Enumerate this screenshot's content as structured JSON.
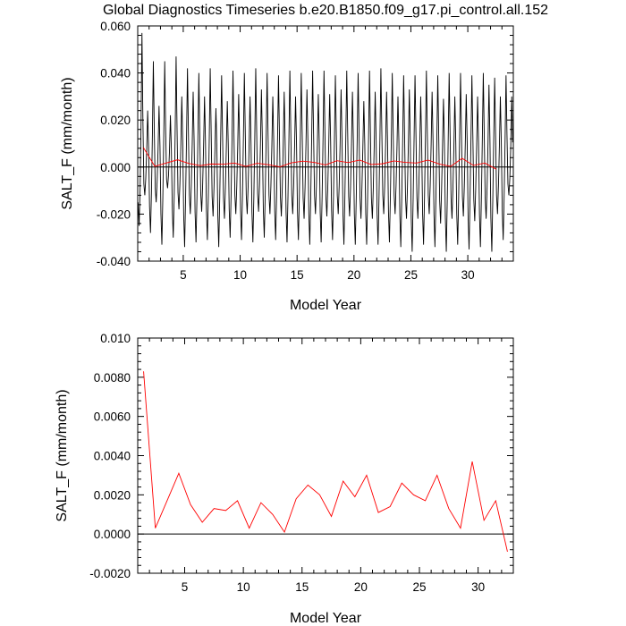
{
  "page_title": "Global Diagnostics Timeseries b.e20.B1850.f09_g17.pi_control.all.152",
  "chart_data": [
    {
      "type": "line",
      "xlabel": "Model Year",
      "ylabel": "SALT_F (mm/month)",
      "xlim": [
        1,
        34
      ],
      "ylim": [
        -0.04,
        0.06
      ],
      "xticks": [
        5,
        10,
        15,
        20,
        25,
        30
      ],
      "xtick_labels": [
        "5",
        "10",
        "15",
        "20",
        "25",
        "30"
      ],
      "yticks": [
        -0.04,
        -0.02,
        0.0,
        0.02,
        0.04,
        0.06
      ],
      "ytick_labels": [
        "-0.040",
        "-0.020",
        "0.000",
        "0.020",
        "0.040",
        "0.060"
      ],
      "zero_line": 0,
      "series": [
        {
          "color": "#000000",
          "kind": "monthly",
          "x_start": 1.04,
          "x_step": 0.0833,
          "peaks": [
            0.057,
            0.024,
            0.045,
            0.026,
            0.045,
            0.022,
            0.047,
            0.03,
            0.042,
            0.032,
            0.04,
            0.03,
            0.042,
            0.025,
            0.039,
            0.028,
            0.041,
            0.031,
            0.04,
            0.03,
            0.042,
            0.033,
            0.04,
            0.03,
            0.039,
            0.032,
            0.041,
            0.03,
            0.04,
            0.033,
            0.041,
            0.031,
            0.041,
            0.031,
            0.039,
            0.033,
            0.041,
            0.032,
            0.04,
            0.028,
            0.041,
            0.032,
            0.042,
            0.032,
            0.04,
            0.03,
            0.039,
            0.033,
            0.039,
            0.03,
            0.041,
            0.032,
            0.039,
            0.029,
            0.04,
            0.03,
            0.04,
            0.031,
            0.039,
            0.03,
            0.04,
            0.035,
            0.038,
            0.03,
            0.039,
            0.03
          ],
          "troughs": [
            -0.025,
            -0.012,
            -0.028,
            -0.015,
            -0.033,
            -0.009,
            -0.03,
            -0.018,
            -0.034,
            -0.02,
            -0.032,
            -0.019,
            -0.031,
            -0.021,
            -0.034,
            -0.022,
            -0.03,
            -0.02,
            -0.031,
            -0.02,
            -0.032,
            -0.019,
            -0.03,
            -0.02,
            -0.031,
            -0.021,
            -0.032,
            -0.02,
            -0.031,
            -0.022,
            -0.033,
            -0.02,
            -0.032,
            -0.021,
            -0.031,
            -0.02,
            -0.033,
            -0.021,
            -0.033,
            -0.022,
            -0.033,
            -0.022,
            -0.033,
            -0.02,
            -0.032,
            -0.02,
            -0.034,
            -0.022,
            -0.036,
            -0.022,
            -0.033,
            -0.02,
            -0.034,
            -0.024,
            -0.036,
            -0.022,
            -0.033,
            -0.021,
            -0.035,
            -0.023,
            -0.034,
            -0.022,
            -0.036,
            -0.02,
            -0.031,
            -0.012
          ]
        },
        {
          "color": "#ff0000",
          "kind": "annual",
          "x": [
            1.5,
            2.5,
            3.5,
            4.5,
            5.5,
            6.5,
            7.5,
            8.5,
            9.5,
            10.5,
            11.5,
            12.5,
            13.5,
            14.5,
            15.5,
            16.5,
            17.5,
            18.5,
            19.5,
            20.5,
            21.5,
            22.5,
            23.5,
            24.5,
            25.5,
            26.5,
            27.5,
            28.5,
            29.5,
            30.5,
            31.5,
            32.5
          ],
          "values": [
            0.0083,
            0.0003,
            0.0017,
            0.0031,
            0.0015,
            0.0006,
            0.0013,
            0.0012,
            0.0017,
            0.0003,
            0.0016,
            0.001,
            0.0001,
            0.0018,
            0.0025,
            0.002,
            0.0009,
            0.0027,
            0.0019,
            0.003,
            0.0011,
            0.0014,
            0.0026,
            0.002,
            0.0017,
            0.003,
            0.0013,
            0.0003,
            0.0037,
            0.0007,
            0.0017,
            -0.0009
          ]
        }
      ]
    },
    {
      "type": "line",
      "xlabel": "Model Year",
      "ylabel": "SALT_F (mm/month)",
      "xlim": [
        1,
        33
      ],
      "ylim": [
        -0.002,
        0.01
      ],
      "xticks": [
        5,
        10,
        15,
        20,
        25,
        30
      ],
      "xtick_labels": [
        "5",
        "10",
        "15",
        "20",
        "25",
        "30"
      ],
      "yticks": [
        -0.002,
        0.0,
        0.002,
        0.004,
        0.006,
        0.008,
        0.01
      ],
      "ytick_labels": [
        "-0.0020",
        "0.0000",
        "0.0020",
        "0.0040",
        "0.0060",
        "0.0080",
        "0.010"
      ],
      "zero_line": 0,
      "series": [
        {
          "color": "#ff0000",
          "kind": "annual",
          "x": [
            1.5,
            2.5,
            3.5,
            4.5,
            5.5,
            6.5,
            7.5,
            8.5,
            9.5,
            10.5,
            11.5,
            12.5,
            13.5,
            14.5,
            15.5,
            16.5,
            17.5,
            18.5,
            19.5,
            20.5,
            21.5,
            22.5,
            23.5,
            24.5,
            25.5,
            26.5,
            27.5,
            28.5,
            29.5,
            30.5,
            31.5,
            32.5
          ],
          "values": [
            0.0083,
            0.0003,
            0.0017,
            0.0031,
            0.0015,
            0.0006,
            0.0013,
            0.0012,
            0.0017,
            0.0003,
            0.0016,
            0.001,
            0.0001,
            0.0018,
            0.0025,
            0.002,
            0.0009,
            0.0027,
            0.0019,
            0.003,
            0.0011,
            0.0014,
            0.0026,
            0.002,
            0.0017,
            0.003,
            0.0013,
            0.0003,
            0.0037,
            0.0007,
            0.0017,
            -0.0009
          ]
        }
      ]
    }
  ]
}
